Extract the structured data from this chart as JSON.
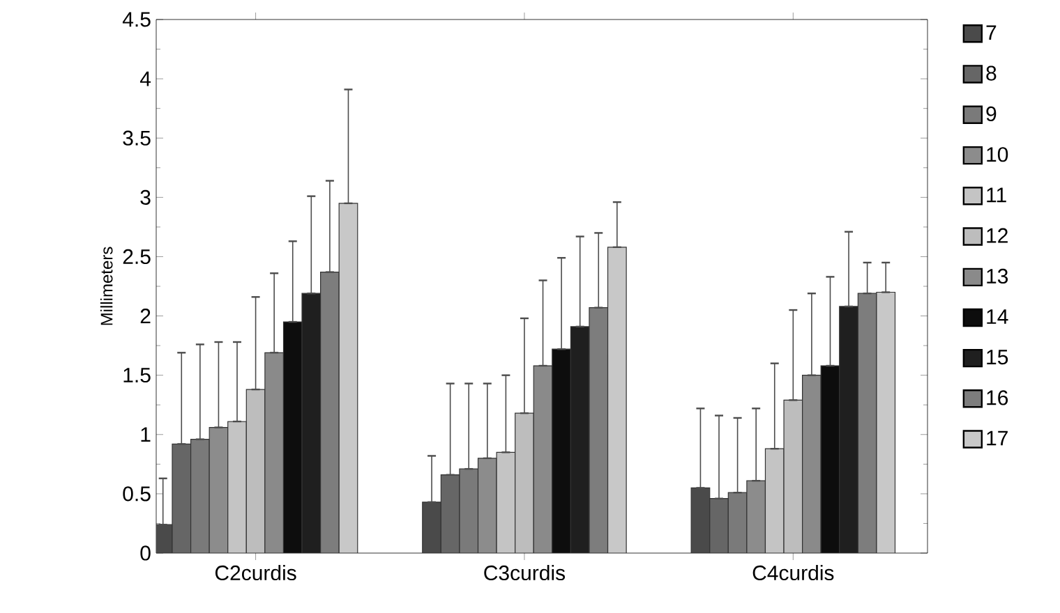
{
  "chart_data": {
    "type": "bar",
    "ylabel": "Millimeters",
    "categories": [
      "C2curdis",
      "C3curdis",
      "C4curdis"
    ],
    "ylim": [
      0,
      4.5
    ],
    "yticks": [
      0,
      0.5,
      1,
      1.5,
      2,
      2.5,
      3,
      3.5,
      4,
      4.5
    ],
    "grid": false,
    "legend": "right",
    "series": [
      {
        "name": "7",
        "color": "#4a4a4a",
        "values": [
          0.24,
          0.43,
          0.55
        ],
        "errors": [
          [
            0.24,
            0.63
          ],
          [
            0.43,
            0.82
          ],
          [
            0.55,
            1.22
          ]
        ]
      },
      {
        "name": "8",
        "color": "#666666",
        "values": [
          0.92,
          0.66,
          0.46
        ],
        "errors": [
          [
            0.92,
            1.69
          ],
          [
            0.66,
            1.43
          ],
          [
            0.46,
            1.16
          ]
        ]
      },
      {
        "name": "9",
        "color": "#7a7a7a",
        "values": [
          0.96,
          0.71,
          0.51
        ],
        "errors": [
          [
            0.96,
            1.76
          ],
          [
            0.71,
            1.43
          ],
          [
            0.51,
            1.14
          ]
        ]
      },
      {
        "name": "10",
        "color": "#8c8c8c",
        "values": [
          1.06,
          0.8,
          0.61
        ],
        "errors": [
          [
            1.06,
            1.78
          ],
          [
            0.8,
            1.43
          ],
          [
            0.61,
            1.22
          ]
        ]
      },
      {
        "name": "11",
        "color": "#c4c4c4",
        "values": [
          1.11,
          0.85,
          0.88
        ],
        "errors": [
          [
            1.11,
            1.78
          ],
          [
            0.85,
            1.5
          ],
          [
            0.88,
            1.6
          ]
        ]
      },
      {
        "name": "12",
        "color": "#bdbdbd",
        "values": [
          1.38,
          1.18,
          1.29
        ],
        "errors": [
          [
            1.38,
            2.16
          ],
          [
            1.18,
            1.98
          ],
          [
            1.29,
            2.05
          ]
        ]
      },
      {
        "name": "13",
        "color": "#8a8a8a",
        "values": [
          1.69,
          1.58,
          1.5
        ],
        "errors": [
          [
            1.69,
            2.36
          ],
          [
            1.58,
            2.3
          ],
          [
            1.5,
            2.19
          ]
        ]
      },
      {
        "name": "14",
        "color": "#0d0d0d",
        "values": [
          1.95,
          1.72,
          1.58
        ],
        "errors": [
          [
            1.95,
            2.63
          ],
          [
            1.72,
            2.49
          ],
          [
            1.58,
            2.33
          ]
        ]
      },
      {
        "name": "15",
        "color": "#1f1f1f",
        "values": [
          2.19,
          1.91,
          2.08
        ],
        "errors": [
          [
            2.19,
            3.01
          ],
          [
            1.91,
            2.67
          ],
          [
            2.08,
            2.71
          ]
        ]
      },
      {
        "name": "16",
        "color": "#7d7d7d",
        "values": [
          2.37,
          2.07,
          2.19
        ],
        "errors": [
          [
            2.37,
            3.14
          ],
          [
            2.07,
            2.7
          ],
          [
            2.19,
            2.45
          ]
        ]
      },
      {
        "name": "17",
        "color": "#c8c8c8",
        "values": [
          2.95,
          2.58,
          2.2
        ],
        "errors": [
          [
            2.95,
            3.91
          ],
          [
            2.58,
            2.96
          ],
          [
            2.2,
            2.45
          ]
        ]
      }
    ]
  }
}
